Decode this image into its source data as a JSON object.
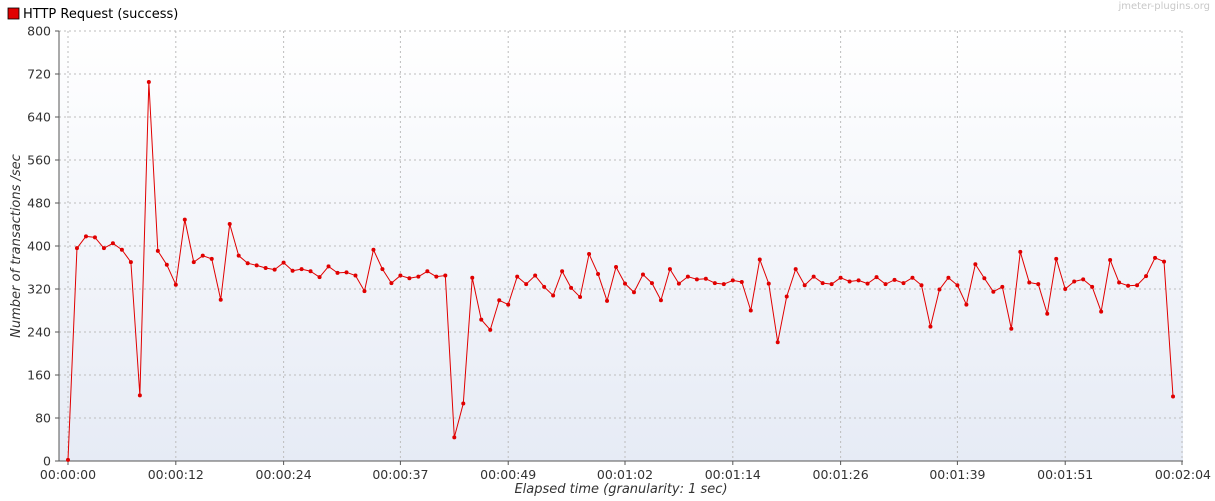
{
  "watermark": "jmeter-plugins.org",
  "colors": {
    "series": "#e00000",
    "grid": "#bdbdbd",
    "axis": "#555555",
    "plot_bg_top": "#ffffff",
    "plot_bg_bottom": "#e6ebf5"
  },
  "chart_data": {
    "type": "line",
    "title": "",
    "xlabel": "Elapsed time (granularity: 1 sec)",
    "ylabel": "Number of transactions /sec",
    "ylim": [
      0,
      800
    ],
    "yticks": [
      0,
      80,
      160,
      240,
      320,
      400,
      480,
      560,
      640,
      720,
      800
    ],
    "xlim": [
      0,
      124
    ],
    "xticks": [
      {
        "t": 0,
        "label": "00:00:00"
      },
      {
        "t": 12,
        "label": "00:00:12"
      },
      {
        "t": 24,
        "label": "00:00:24"
      },
      {
        "t": 37,
        "label": "00:00:37"
      },
      {
        "t": 49,
        "label": "00:00:49"
      },
      {
        "t": 62,
        "label": "00:01:02"
      },
      {
        "t": 74,
        "label": "00:01:14"
      },
      {
        "t": 86,
        "label": "00:01:26"
      },
      {
        "t": 99,
        "label": "00:01:39"
      },
      {
        "t": 111,
        "label": "00:01:51"
      },
      {
        "t": 124,
        "label": "00:02:04"
      }
    ],
    "grid": true,
    "legend_position": "top-left",
    "series": [
      {
        "name": "HTTP Request (success)",
        "values": [
          2,
          396,
          418,
          416,
          396,
          405,
          393,
          370,
          122,
          705,
          391,
          365,
          328,
          449,
          370,
          382,
          376,
          300,
          441,
          382,
          368,
          364,
          359,
          356,
          369,
          354,
          357,
          353,
          342,
          362,
          350,
          351,
          345,
          316,
          393,
          357,
          331,
          345,
          340,
          343,
          353,
          343,
          345,
          44,
          107,
          341,
          263,
          244,
          299,
          291,
          343,
          329,
          345,
          324,
          308,
          353,
          322,
          305,
          385,
          348,
          298,
          361,
          330,
          314,
          347,
          331,
          299,
          357,
          330,
          343,
          338,
          339,
          331,
          329,
          336,
          333,
          280,
          375,
          330,
          221,
          306,
          357,
          327,
          343,
          331,
          329,
          341,
          334,
          336,
          330,
          342,
          329,
          337,
          331,
          341,
          327,
          250,
          319,
          341,
          327,
          291,
          366,
          340,
          315,
          324,
          246,
          389,
          332,
          329,
          274,
          376,
          320,
          334,
          338,
          324,
          278,
          374,
          332,
          326,
          327,
          344,
          378,
          371,
          120
        ]
      }
    ]
  }
}
